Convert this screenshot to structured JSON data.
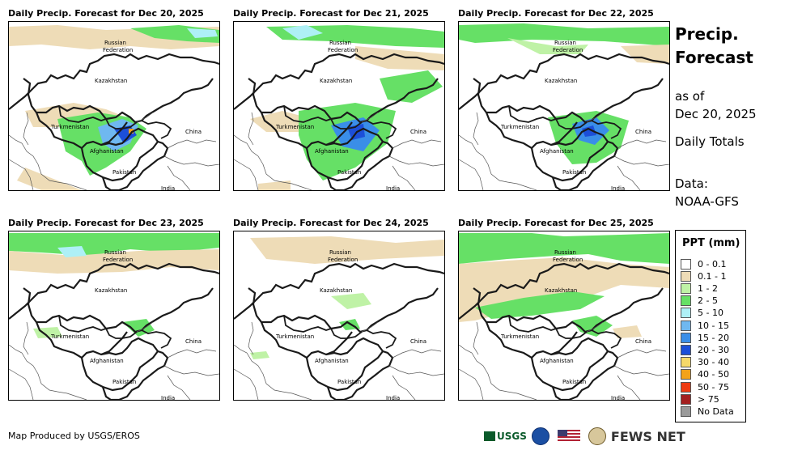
{
  "panels": [
    {
      "title": "Daily Precip. Forecast for Dec 20, 2025"
    },
    {
      "title": "Daily Precip. Forecast for Dec 21, 2025"
    },
    {
      "title": "Daily Precip. Forecast for Dec 22, 2025"
    },
    {
      "title": "Daily Precip. Forecast for Dec 23, 2025"
    },
    {
      "title": "Daily Precip. Forecast for Dec 24, 2025"
    },
    {
      "title": "Daily Precip. Forecast for Dec 25, 2025"
    }
  ],
  "map_labels": {
    "russia1": "Russian",
    "russia2": "Federation",
    "kazakhstan": "Kazakhstan",
    "turkmenistan": "Turkmenistan",
    "china": "China",
    "afghanistan": "Afghanistan",
    "pakistan": "Pakistan",
    "india": "India"
  },
  "side": {
    "title_line1": "Precip.",
    "title_line2": "Forecast",
    "asof_line1": "as of",
    "asof_line2": "Dec 20, 2025",
    "daily": "Daily Totals",
    "data_line1": "Data:",
    "data_line2": "NOAA-GFS"
  },
  "legend": {
    "title": "PPT (mm)",
    "items": [
      {
        "label": "0 - 0.1",
        "color": "#ffffff"
      },
      {
        "label": "0.1 - 1",
        "color": "#eedcb7"
      },
      {
        "label": "1 - 2",
        "color": "#bff2a6"
      },
      {
        "label": "2 - 5",
        "color": "#66e066"
      },
      {
        "label": "5 - 10",
        "color": "#aef0f6"
      },
      {
        "label": "10 - 15",
        "color": "#6fb8f0"
      },
      {
        "label": "15 - 20",
        "color": "#3a8ee8"
      },
      {
        "label": "20 - 30",
        "color": "#1c4fd8"
      },
      {
        "label": "30 - 40",
        "color": "#f6d96a"
      },
      {
        "label": "40 - 50",
        "color": "#f3a21a"
      },
      {
        "label": "50 - 75",
        "color": "#ee3b12"
      },
      {
        "label": "> 75",
        "color": "#a41f1f"
      },
      {
        "label": "No Data",
        "color": "#9a9a9a"
      }
    ]
  },
  "credit": "Map Produced by USGS/EROS",
  "logos": {
    "usgs": "USGS",
    "fews": "FEWS NET"
  }
}
